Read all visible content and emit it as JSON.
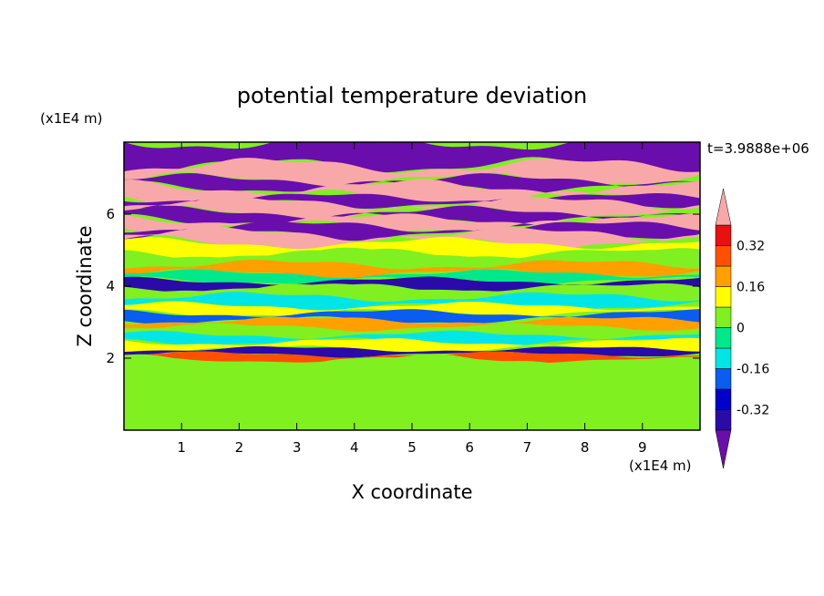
{
  "chart_data": {
    "type": "heatmap",
    "title": "potential temperature deviation",
    "xlabel": "X coordinate",
    "ylabel": "Z coordinate",
    "x_unit": "(x1E4 m)",
    "y_unit": "(x1E4 m)",
    "time_label": "t=3.9888e+06",
    "xlim": [
      0,
      10
    ],
    "ylim": [
      0,
      8
    ],
    "x_ticks": [
      1,
      2,
      3,
      4,
      5,
      6,
      7,
      8,
      9
    ],
    "y_ticks": [
      2,
      4,
      6
    ],
    "colorbar": {
      "levels": [
        -0.4,
        -0.32,
        -0.24,
        -0.16,
        -0.08,
        0,
        0.08,
        0.16,
        0.24,
        0.32,
        0.4
      ],
      "labels": [
        "0.32",
        "0.16",
        "0",
        "-0.16",
        "-0.32"
      ],
      "label_values": [
        0.32,
        0.16,
        0,
        -0.16,
        -0.32
      ],
      "colors": [
        "#6a0dad",
        "#2a0aa8",
        "#0000c8",
        "#0b5cf0",
        "#00e6e6",
        "#00e88a",
        "#80f020",
        "#ffff00",
        "#ffa000",
        "#ff5000",
        "#e81010",
        "#f8a8a8"
      ],
      "extend": "both"
    },
    "bands": [
      {
        "z0": 7.35,
        "z1": 8.0,
        "value": -0.5
      },
      {
        "z0": 6.95,
        "z1": 7.35,
        "value": 0.5
      },
      {
        "z0": 6.75,
        "z1": 6.95,
        "value": -0.5
      },
      {
        "z0": 6.45,
        "z1": 6.75,
        "value": 0.5
      },
      {
        "z0": 6.3,
        "z1": 6.45,
        "value": -0.45
      },
      {
        "z0": 6.05,
        "z1": 6.3,
        "value": 0.5
      },
      {
        "z0": 5.85,
        "z1": 6.05,
        "value": -0.5
      },
      {
        "z0": 5.65,
        "z1": 5.85,
        "value": 0.45
      },
      {
        "z0": 5.45,
        "z1": 5.65,
        "value": -0.5
      },
      {
        "z0": 5.2,
        "z1": 5.45,
        "value": 0.42
      },
      {
        "z0": 4.9,
        "z1": 5.2,
        "value": 0.12
      },
      {
        "z0": 4.6,
        "z1": 4.9,
        "value": 0.02
      },
      {
        "z0": 4.35,
        "z1": 4.6,
        "value": 0.18
      },
      {
        "z0": 4.15,
        "z1": 4.35,
        "value": -0.03
      },
      {
        "z0": 3.95,
        "z1": 4.15,
        "value": -0.34
      },
      {
        "z0": 3.7,
        "z1": 3.95,
        "value": 0.06
      },
      {
        "z0": 3.45,
        "z1": 3.7,
        "value": -0.1
      },
      {
        "z0": 3.25,
        "z1": 3.45,
        "value": 0.08
      },
      {
        "z0": 3.05,
        "z1": 3.25,
        "value": -0.22
      },
      {
        "z0": 2.85,
        "z1": 3.05,
        "value": 0.22
      },
      {
        "z0": 2.65,
        "z1": 2.85,
        "value": 0.01
      },
      {
        "z0": 2.45,
        "z1": 2.65,
        "value": -0.14
      },
      {
        "z0": 2.25,
        "z1": 2.45,
        "value": 0.14
      },
      {
        "z0": 2.1,
        "z1": 2.25,
        "value": -0.35
      },
      {
        "z0": 1.95,
        "z1": 2.1,
        "value": 0.3
      },
      {
        "z0": 1.6,
        "z1": 1.95,
        "value": 0.06
      },
      {
        "z0": 0.2,
        "z1": 1.6,
        "value": 0.04
      },
      {
        "z0": 0.0,
        "z1": 0.2,
        "value": 0.07
      }
    ]
  }
}
